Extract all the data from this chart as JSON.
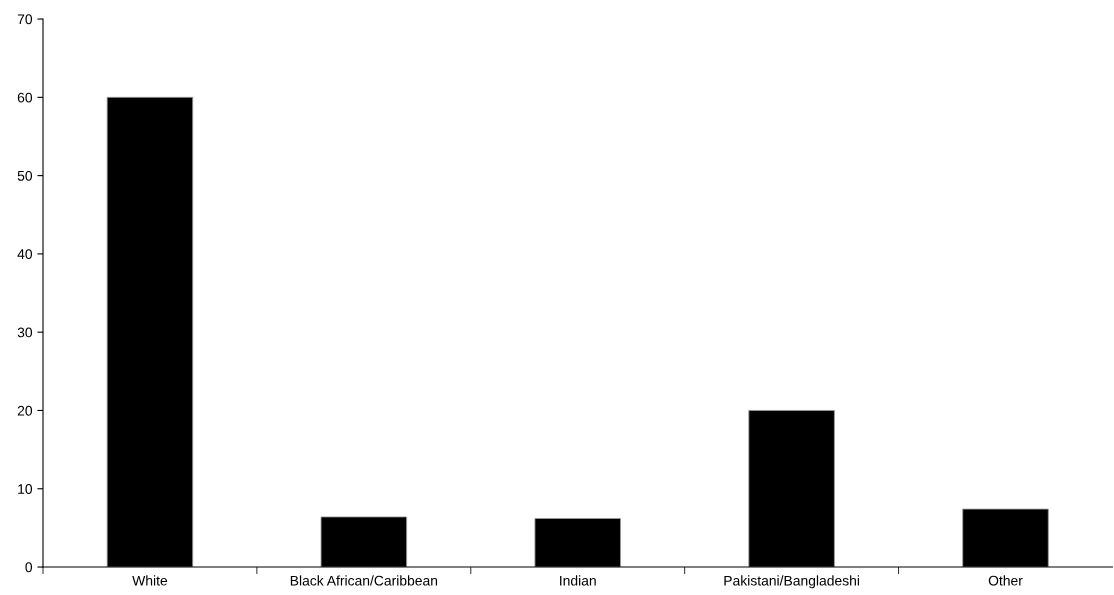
{
  "chart_data": {
    "type": "bar",
    "categories": [
      "White",
      "Black African/Caribbean",
      "Indian",
      "Pakistani/Bangladeshi",
      "Other"
    ],
    "values": [
      60,
      6.4,
      6.2,
      20,
      7.4
    ],
    "color": "#000000",
    "ylim": [
      0,
      70
    ],
    "yticks": [
      0,
      10,
      20,
      30,
      40,
      50,
      60,
      70
    ],
    "grid": false,
    "legend": false
  }
}
